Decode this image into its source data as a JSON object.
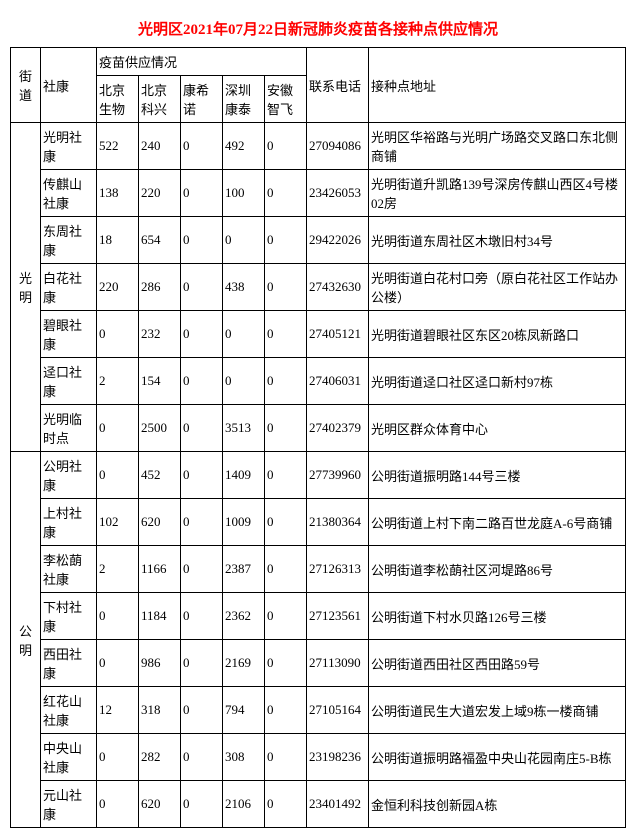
{
  "title": "光明区2021年07月22日新冠肺炎疫苗各接种点供应情况",
  "headers": {
    "street": "街道",
    "site": "社康",
    "supply_group": "疫苗供应情况",
    "v1": "北京生物",
    "v2": "北京科兴",
    "v3": "康希诺",
    "v4": "深圳康泰",
    "v5": "安徽智飞",
    "phone": "联系电话",
    "address": "接种点地址"
  },
  "streets": [
    {
      "name": "光明",
      "rows": [
        {
          "site": "光明社康",
          "v": [
            "522",
            "240",
            "0",
            "492",
            "0"
          ],
          "phone": "27094086",
          "addr": "光明区华裕路与光明广场路交叉路口东北侧商铺"
        },
        {
          "site": "传麒山社康",
          "v": [
            "138",
            "220",
            "0",
            "100",
            "0"
          ],
          "phone": "23426053",
          "addr": "光明街道升凯路139号深房传麒山西区4号楼02房"
        },
        {
          "site": "东周社康",
          "v": [
            "18",
            "654",
            "0",
            "0",
            "0"
          ],
          "phone": "29422026",
          "addr": "光明街道东周社区木墩旧村34号"
        },
        {
          "site": "白花社康",
          "v": [
            "220",
            "286",
            "0",
            "438",
            "0"
          ],
          "phone": "27432630",
          "addr": "光明街道白花村口旁（原白花社区工作站办公楼）"
        },
        {
          "site": "碧眼社康",
          "v": [
            "0",
            "232",
            "0",
            "0",
            "0"
          ],
          "phone": "27405121",
          "addr": "光明街道碧眼社区东区20栋凤新路口"
        },
        {
          "site": "迳口社康",
          "v": [
            "2",
            "154",
            "0",
            "0",
            "0"
          ],
          "phone": "27406031",
          "addr": "光明街道迳口社区迳口新村97栋"
        },
        {
          "site": "光明临时点",
          "v": [
            "0",
            "2500",
            "0",
            "3513",
            "0"
          ],
          "phone": "27402379",
          "addr": "光明区群众体育中心"
        }
      ]
    },
    {
      "name": "公明",
      "rows": [
        {
          "site": "公明社康",
          "v": [
            "0",
            "452",
            "0",
            "1409",
            "0"
          ],
          "phone": "27739960",
          "addr": "公明街道振明路144号三楼"
        },
        {
          "site": "上村社康",
          "v": [
            "102",
            "620",
            "0",
            "1009",
            "0"
          ],
          "phone": "21380364",
          "addr": "公明街道上村下南二路百世龙庭A-6号商铺"
        },
        {
          "site": "李松蓢社康",
          "v": [
            "2",
            "1166",
            "0",
            "2387",
            "0"
          ],
          "phone": "27126313",
          "addr": "公明街道李松蓢社区河堤路86号"
        },
        {
          "site": "下村社康",
          "v": [
            "0",
            "1184",
            "0",
            "2362",
            "0"
          ],
          "phone": "27123561",
          "addr": "公明街道下村水贝路126号三楼"
        },
        {
          "site": "西田社康",
          "v": [
            "0",
            "986",
            "0",
            "2169",
            "0"
          ],
          "phone": "27113090",
          "addr": "公明街道西田社区西田路59号"
        },
        {
          "site": "红花山社康",
          "v": [
            "12",
            "318",
            "0",
            "794",
            "0"
          ],
          "phone": "27105164",
          "addr": "公明街道民生大道宏发上域9栋一楼商铺"
        },
        {
          "site": "中央山社康",
          "v": [
            "0",
            "282",
            "0",
            "308",
            "0"
          ],
          "phone": "23198236",
          "addr": "公明街道振明路福盈中央山花园南庄5-B栋"
        },
        {
          "site": "元山社康",
          "v": [
            "0",
            "620",
            "0",
            "2106",
            "0"
          ],
          "phone": "23401492",
          "addr": "金恒利科技创新园A栋"
        }
      ]
    }
  ]
}
